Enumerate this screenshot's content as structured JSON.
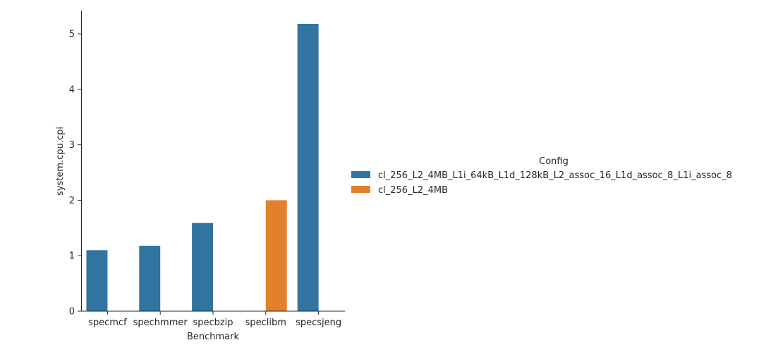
{
  "chart_data": {
    "type": "bar",
    "title": "",
    "xlabel": "Benchmark",
    "ylabel": "system.cpu.cpi",
    "categories": [
      "specmcf",
      "spechmmer",
      "specbzip",
      "speclibm",
      "specsjeng"
    ],
    "ylim": [
      0,
      5.42
    ],
    "yticks": [
      0,
      1,
      2,
      3,
      4,
      5
    ],
    "ytick_labels": [
      "0",
      "1",
      "2",
      "3",
      "4",
      "5"
    ],
    "grid": false,
    "legend_title": "Config",
    "legend_position": "right",
    "series": [
      {
        "name": "cl_256_L2_4MB_L1i_64kB_L1d_128kB_L2_assoc_16_L1d_assoc_8_L1i_assoc_8",
        "color": "#3274a1",
        "values": [
          1.1,
          1.18,
          1.59,
          null,
          5.18
        ]
      },
      {
        "name": "cl_256_L2_4MB",
        "color": "#e1812c",
        "values": [
          null,
          null,
          null,
          2.0,
          null
        ]
      }
    ]
  }
}
